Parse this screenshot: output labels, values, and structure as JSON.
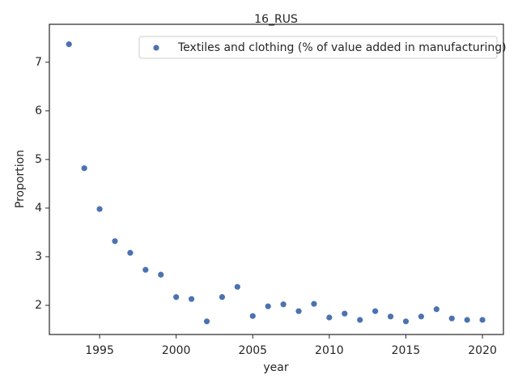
{
  "chart_data": {
    "type": "scatter",
    "title": "16_RUS",
    "x_label": "year",
    "y_label": "Proportion",
    "series": [
      {
        "name": "Textiles and clothing (% of value added in manufacturing)",
        "color": "#4c72b0",
        "x": [
          1993,
          1994,
          1995,
          1996,
          1997,
          1998,
          1999,
          2000,
          2001,
          2002,
          2003,
          2004,
          2005,
          2006,
          2007,
          2008,
          2009,
          2010,
          2011,
          2012,
          2013,
          2014,
          2015,
          2016,
          2017,
          2018,
          2019,
          2020
        ],
        "values": [
          7.37,
          4.82,
          3.98,
          3.32,
          3.08,
          2.73,
          2.63,
          2.17,
          2.13,
          1.67,
          2.17,
          2.38,
          1.78,
          1.98,
          2.02,
          1.88,
          2.03,
          1.75,
          1.83,
          1.7,
          1.88,
          1.77,
          1.67,
          1.77,
          1.92,
          1.73,
          1.7,
          1.7
        ]
      }
    ],
    "xlim": [
      1991.72,
      2021.37
    ],
    "ylim": [
      1.4,
      7.78
    ],
    "xticks": [
      1995,
      2000,
      2005,
      2010,
      2015,
      2020
    ],
    "yticks": [
      2,
      3,
      4,
      5,
      6,
      7
    ],
    "legend": "upper right",
    "grid": false
  }
}
